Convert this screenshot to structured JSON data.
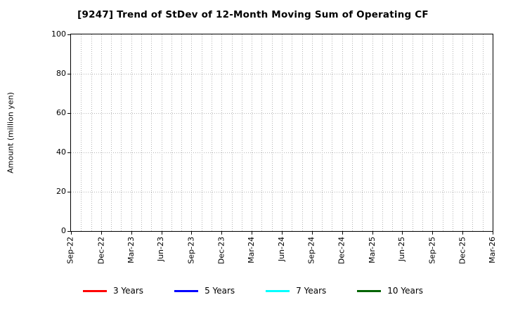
{
  "title": "[9247]  Trend of StDev of 12-Month Moving Sum of Operating CF",
  "chart_data": {
    "type": "line",
    "title": "[9247]  Trend of StDev of 12-Month Moving Sum of Operating CF",
    "xlabel": "",
    "ylabel": "Amount (million yen)",
    "ylim": [
      0,
      100
    ],
    "yticks": [
      0,
      20,
      40,
      60,
      80,
      100
    ],
    "categories": [
      "Sep-22",
      "Dec-22",
      "Mar-23",
      "Jun-23",
      "Sep-23",
      "Dec-23",
      "Mar-24",
      "Jun-24",
      "Sep-24",
      "Dec-24",
      "Mar-25",
      "Jun-25",
      "Sep-25",
      "Dec-25",
      "Mar-26"
    ],
    "x_minor_divisions": 3,
    "grid": "dotted",
    "grid_color": "#b3b3b3",
    "axis_color": "#000000",
    "legend_position": "bottom",
    "series": [
      {
        "name": "3 Years",
        "color": "#ff0000",
        "values": []
      },
      {
        "name": "5 Years",
        "color": "#0000ff",
        "values": []
      },
      {
        "name": "7 Years",
        "color": "#00ffff",
        "values": []
      },
      {
        "name": "10 Years",
        "color": "#006400",
        "values": []
      }
    ]
  }
}
